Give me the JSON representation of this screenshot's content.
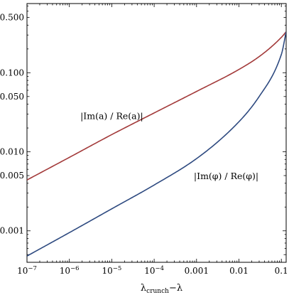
{
  "chart_data": {
    "type": "line",
    "title": "",
    "xscale": "log",
    "yscale": "log",
    "xlim": [
      1e-07,
      0.13
    ],
    "ylim": [
      0.0004,
      0.75
    ],
    "xlabel": {
      "main": "λ",
      "sub": "crunch",
      "suffix": "−λ"
    },
    "ylabel": "",
    "grid": false,
    "x_ticks": [
      {
        "value": 1e-07,
        "base": "10",
        "exp": "−7"
      },
      {
        "value": 1e-06,
        "base": "10",
        "exp": "−6"
      },
      {
        "value": 1e-05,
        "base": "10",
        "exp": "−5"
      },
      {
        "value": 0.0001,
        "base": "10",
        "exp": "−4"
      },
      {
        "value": 0.001,
        "label": "0.001"
      },
      {
        "value": 0.01,
        "label": "0.01"
      },
      {
        "value": 0.1,
        "label": "0.1"
      }
    ],
    "y_ticks": [
      {
        "value": 0.001,
        "label": "0.001"
      },
      {
        "value": 0.005,
        "label": "0.005"
      },
      {
        "value": 0.01,
        "label": "0.010"
      },
      {
        "value": 0.05,
        "label": "0.050"
      },
      {
        "value": 0.1,
        "label": "0.100"
      },
      {
        "value": 0.5,
        "label": "0.500"
      }
    ],
    "series": [
      {
        "name": "|Im(a) / Re(a)|",
        "color": "#a33a3a",
        "label_anchor": {
          "x": 1e-05,
          "y": 0.026
        },
        "x": [
          1e-07,
          1e-06,
          1e-05,
          0.0001,
          0.001,
          0.01,
          0.03,
          0.1,
          0.13
        ],
        "y": [
          0.0044,
          0.0085,
          0.0165,
          0.031,
          0.058,
          0.11,
          0.16,
          0.28,
          0.33
        ]
      },
      {
        "name": "|Im(φ) / Re(φ)|",
        "color": "#2e4a80",
        "label_anchor": {
          "x": 0.005,
          "y": 0.0045
        },
        "x": [
          1e-07,
          1e-06,
          1e-05,
          0.0001,
          0.001,
          0.01,
          0.03,
          0.1,
          0.13
        ],
        "y": [
          0.00048,
          0.00095,
          0.0019,
          0.0038,
          0.0082,
          0.024,
          0.05,
          0.17,
          0.33
        ]
      }
    ]
  }
}
